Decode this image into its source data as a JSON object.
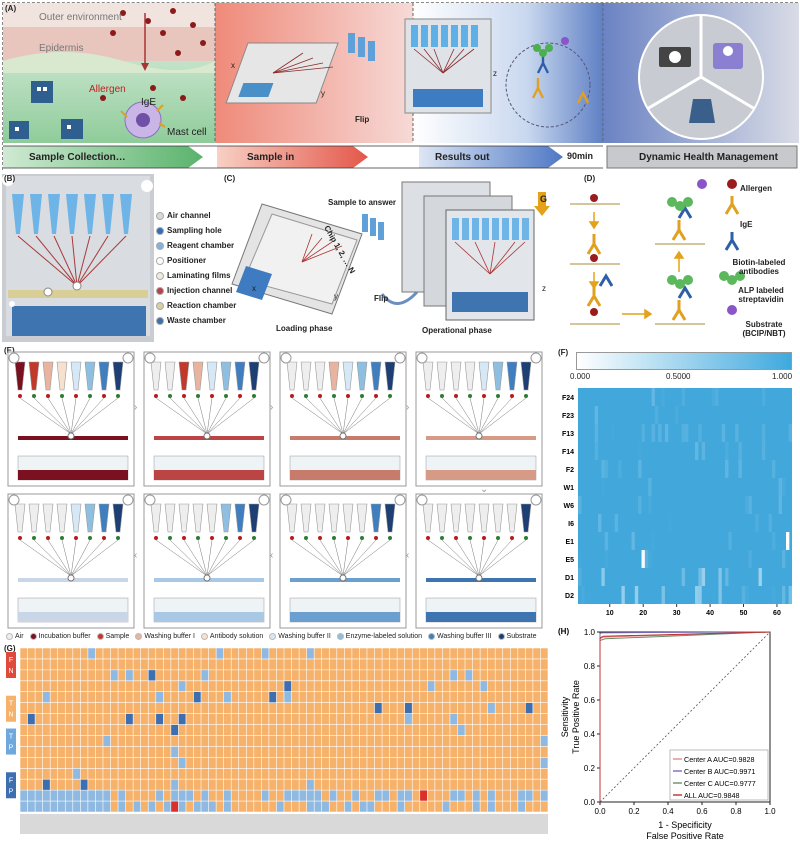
{
  "panelA": {
    "label": "(A)",
    "outer_environment": "Outer environment",
    "epidermis": "Epidermis",
    "allergen": "Allergen",
    "ige": "IgE",
    "mast_cell": "Mast cell",
    "flip": "Flip",
    "axis_x": "x",
    "axis_y": "y",
    "axis_z": "z",
    "steps": [
      "Sample Collection…",
      "Sample in",
      "Results out",
      "Dynamic Health Management"
    ],
    "time": "90min"
  },
  "panelB": {
    "label": "(B)",
    "legend": [
      {
        "text": "Air channel",
        "color": "#d9d9d9"
      },
      {
        "text": "Sampling hole",
        "color": "#2f6fb5"
      },
      {
        "text": "Reagent chamber",
        "color": "#7fb4e0"
      },
      {
        "text": "Positioner",
        "color": "#ffffff"
      },
      {
        "text": "Laminating films",
        "color": "#f0eadc"
      },
      {
        "text": "Injection channel",
        "color": "#b9414a"
      },
      {
        "text": "Reaction chamber",
        "color": "#d6cfa0"
      },
      {
        "text": "Waste chamber",
        "color": "#3e6fa8"
      }
    ]
  },
  "panelC": {
    "label": "(C)",
    "sample_to_answer": "Sample to answer",
    "chip": "Chip 1, 2, … N",
    "flip": "Flip",
    "loading": "Loading phase",
    "operational": "Operational phase",
    "g": "G",
    "x": "x",
    "y": "y",
    "z": "z"
  },
  "panelD": {
    "label": "(D)",
    "legend": [
      "Allergen",
      "IgE",
      "Biotin-labeled antibodies",
      "ALP labeled streptavidin",
      "Substrate (BCIP/NBT)"
    ]
  },
  "panelE": {
    "label": "(E)",
    "legend": [
      {
        "text": "Air",
        "color": "#eeeeee"
      },
      {
        "text": "Incubation buffer",
        "color": "#7a1020"
      },
      {
        "text": "Sample",
        "color": "#c0392b"
      },
      {
        "text": "Washing buffer I",
        "color": "#e8b4a0"
      },
      {
        "text": "Antibody solution",
        "color": "#f6e0d0"
      },
      {
        "text": "Washing buffer II",
        "color": "#d6e8f5"
      },
      {
        "text": "Enzyme-labeled solution",
        "color": "#8fbfe0"
      },
      {
        "text": "Washing buffer III",
        "color": "#3f7fbf"
      },
      {
        "text": "Substrate",
        "color": "#1d3f73"
      }
    ]
  },
  "panelF": {
    "label": "(F)",
    "scale": [
      "0.000",
      "0.5000",
      "1.000"
    ],
    "rows": [
      "F24",
      "F23",
      "F13",
      "F14",
      "F2",
      "W1",
      "W6",
      "I6",
      "E1",
      "E5",
      "D1",
      "D2"
    ],
    "xticks": [
      "10",
      "20",
      "30",
      "40",
      "50",
      "60"
    ]
  },
  "panelG": {
    "label": "(G)",
    "groups": [
      {
        "top": "F",
        "bottom": "N",
        "color": "#e04a3a"
      },
      {
        "top": "T",
        "bottom": "N",
        "color": "#f6b26b"
      },
      {
        "top": "T",
        "bottom": "P",
        "color": "#6fa8dc"
      },
      {
        "top": "F",
        "bottom": "P",
        "color": "#3d6fb0"
      }
    ]
  },
  "chart_data": {
    "type": "line",
    "title": "(H)",
    "xlabel": "1 - Specificity\nFalse Positive Rate",
    "ylabel": "Sensitivity\nTrue Positive Rate",
    "xlim": [
      0.0,
      1.0
    ],
    "ylim": [
      0.0,
      1.0
    ],
    "xticks": [
      "0.0",
      "0.2",
      "0.4",
      "0.6",
      "0.8",
      "1.0"
    ],
    "yticks": [
      "0.0",
      "0.2",
      "0.4",
      "0.6",
      "0.8",
      "1.0"
    ],
    "legend_position": "bottom-right",
    "series": [
      {
        "name": "Center A AUC=0.9828",
        "color": "#e58a8a",
        "x": [
          0.0,
          0.0,
          0.02,
          1.0
        ],
        "y": [
          0.0,
          0.96,
          0.97,
          1.0
        ]
      },
      {
        "name": "Center B AUC=0.9971",
        "color": "#7b6fb5",
        "x": [
          0.0,
          0.0,
          0.01,
          1.0
        ],
        "y": [
          0.0,
          0.99,
          0.995,
          1.0
        ]
      },
      {
        "name": "Center C AUC=0.9777",
        "color": "#6b8f6b",
        "x": [
          0.0,
          0.0,
          0.03,
          1.0
        ],
        "y": [
          0.0,
          0.95,
          0.96,
          1.0
        ]
      },
      {
        "name": "ALL AUC=0.9848",
        "color": "#c03030",
        "x": [
          0.0,
          0.0,
          0.02,
          1.0
        ],
        "y": [
          0.0,
          0.965,
          0.975,
          1.0
        ]
      }
    ]
  }
}
